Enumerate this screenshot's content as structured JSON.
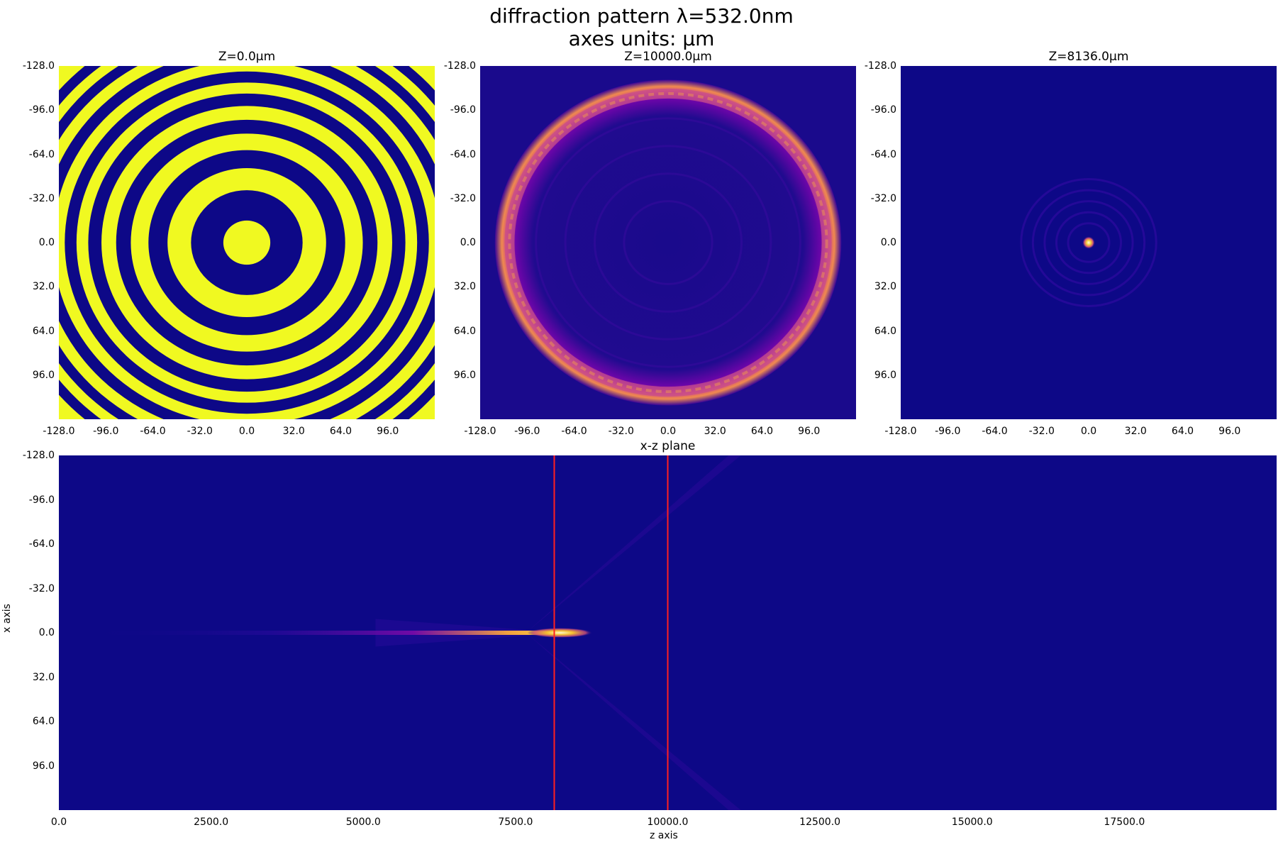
{
  "suptitle": [
    "diffraction pattern λ=532.0nm",
    "axes units: μm"
  ],
  "chart_data": [
    {
      "type": "heatmap",
      "id": "panel1",
      "title": "Z=0.0μm",
      "colormap": "plasma",
      "content": "binary concentric rings (phase zone plate): yellow center disk, alternating blue/yellow rings",
      "xlim": [
        -128.0,
        128.0
      ],
      "ylim": [
        -128.0,
        128.0
      ],
      "xticks": [
        "-128.0",
        "-96.0",
        "-64.0",
        "-32.0",
        "0.0",
        "32.0",
        "64.0",
        "96.0"
      ],
      "yticks": [
        "-128.0",
        "-96.0",
        "-64.0",
        "-32.0",
        "0.0",
        "32.0",
        "64.0",
        "96.0"
      ],
      "ring_radii_um": [
        16,
        38,
        54,
        67,
        79,
        89,
        99,
        108,
        116,
        124,
        132,
        140,
        148,
        155,
        162,
        169,
        176
      ]
    },
    {
      "type": "heatmap",
      "id": "panel2",
      "title": "Z=10000.0μm",
      "colormap": "plasma",
      "content": "bright ring of radius about 108 μm with speckle, dark interior",
      "ring_radius_um": 108,
      "xlim": [
        -128.0,
        128.0
      ],
      "ylim": [
        -128.0,
        128.0
      ],
      "xticks": [
        "-128.0",
        "-96.0",
        "-64.0",
        "-32.0",
        "0.0",
        "32.0",
        "64.0",
        "96.0"
      ],
      "yticks": [
        "-128.0",
        "-96.0",
        "-64.0",
        "-32.0",
        "0.0",
        "32.0",
        "64.0",
        "96.0"
      ]
    },
    {
      "type": "heatmap",
      "id": "panel3",
      "title": "Z=8136.0μm",
      "colormap": "plasma",
      "content": "focused spot at (0,0) with faint concentric rings",
      "xlim": [
        -128.0,
        128.0
      ],
      "ylim": [
        -128.0,
        128.0
      ],
      "xticks": [
        "-128.0",
        "-96.0",
        "-64.0",
        "-32.0",
        "0.0",
        "32.0",
        "64.0",
        "96.0"
      ],
      "yticks": [
        "-128.0",
        "-96.0",
        "-64.0",
        "-32.0",
        "0.0",
        "32.0",
        "64.0",
        "96.0"
      ]
    },
    {
      "type": "heatmap",
      "id": "panel4",
      "title": "x-z plane",
      "colormap": "plasma",
      "xlabel": "z axis",
      "ylabel": "x axis",
      "xlim": [
        0.0,
        20000.0
      ],
      "ylim": [
        -128.0,
        128.0
      ],
      "xticks": [
        "0.0",
        "2500.0",
        "5000.0",
        "7500.0",
        "10000.0",
        "12500.0",
        "15000.0",
        "17500.0"
      ],
      "yticks": [
        "-128.0",
        "-96.0",
        "-64.0",
        "-32.0",
        "0.0",
        "32.0",
        "64.0",
        "96.0"
      ],
      "focus_z": 8136.0,
      "marker_lines_z": [
        8136.0,
        10000.0
      ],
      "marker_color": "#ff2020"
    }
  ],
  "colors": {
    "low": "#0d0887",
    "high": "#f0f921",
    "mid": "#cc4778"
  }
}
